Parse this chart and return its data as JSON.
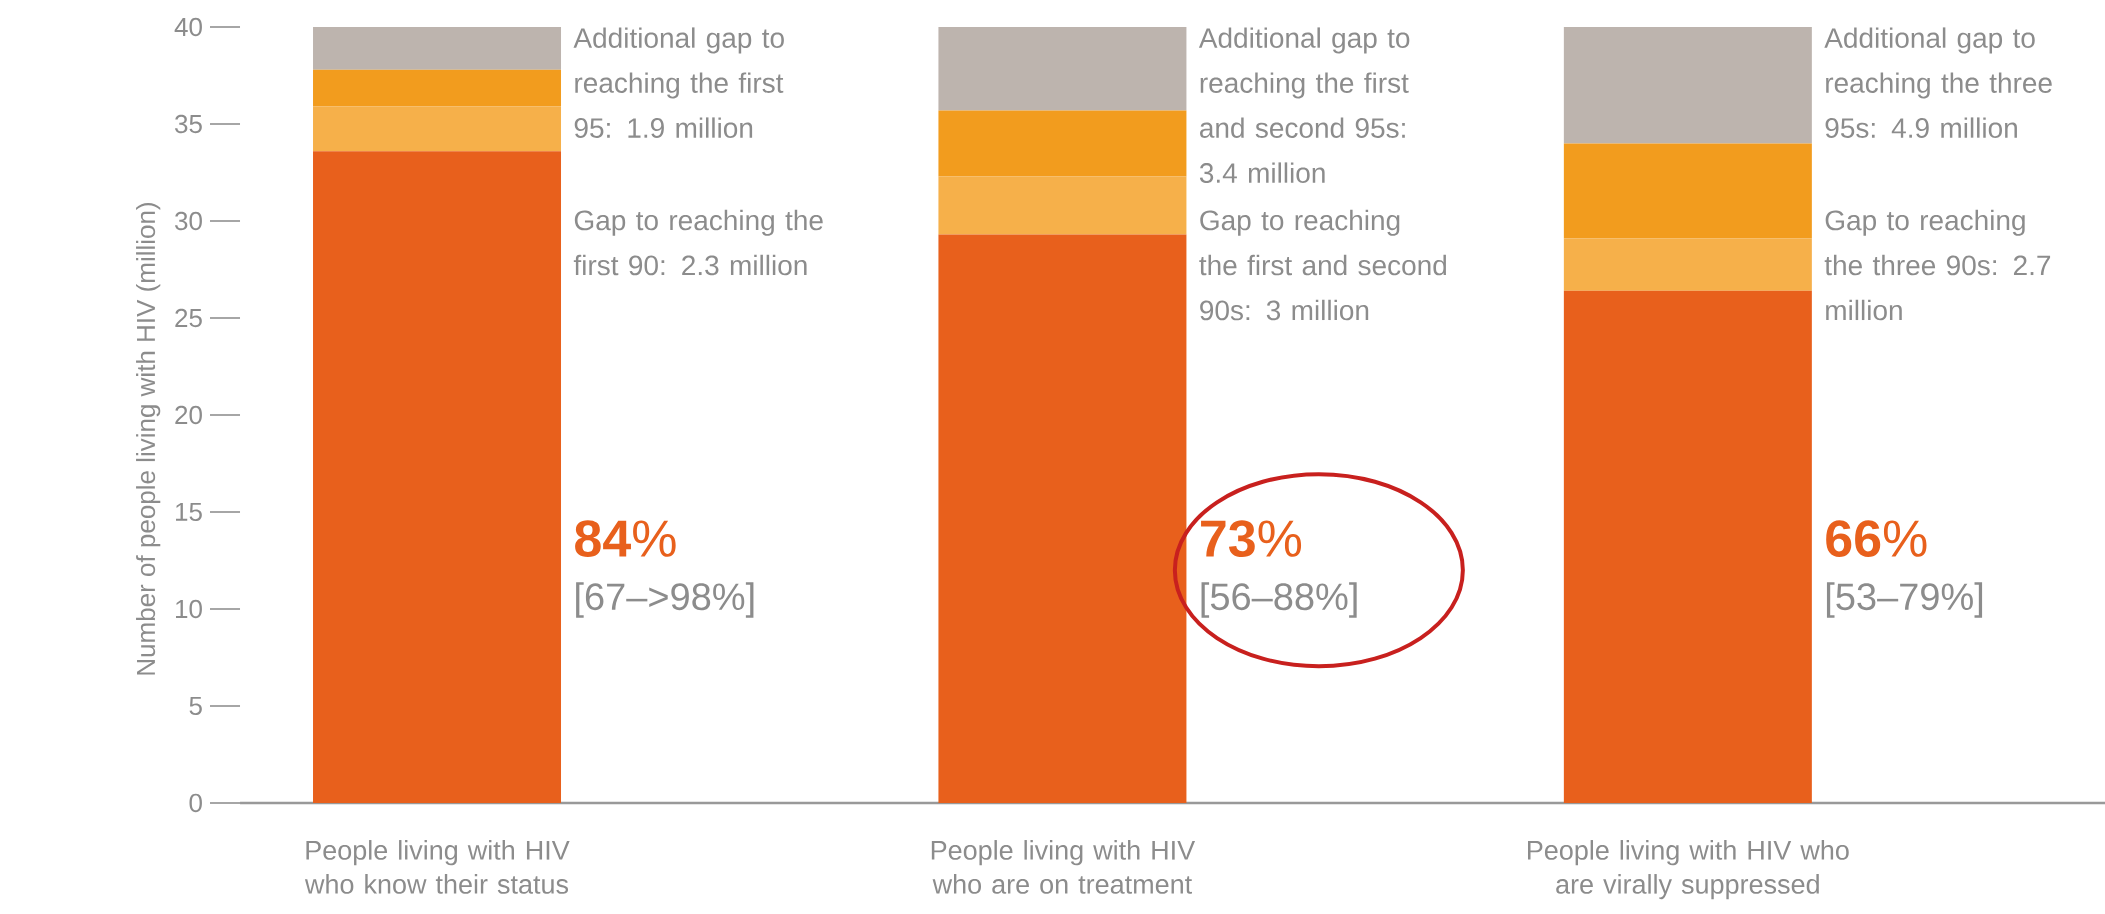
{
  "chart_data": {
    "type": "bar",
    "stacked": true,
    "ylabel": "Number of people living with HIV (million)",
    "categories": [
      "People living with HIV who know their status",
      "People living with HIV who are on treatment",
      "People living with HIV who are virally suppressed"
    ],
    "series": [
      {
        "color": "#e8601c",
        "values": [
          33.6,
          29.3,
          26.4
        ]
      },
      {
        "color": "#f6b04a",
        "values": [
          2.3,
          3.0,
          2.7
        ]
      },
      {
        "color": "#f29c1e",
        "values": [
          1.9,
          3.4,
          4.9
        ]
      },
      {
        "color": "#bdb4ae",
        "values": [
          2.2,
          4.3,
          6.0
        ]
      }
    ],
    "ylim": [
      0,
      40
    ],
    "yticks": [
      0,
      5,
      10,
      15,
      20,
      25,
      30,
      35,
      40
    ],
    "annotations": [
      "Additional gap to reaching the first 95: 1.9 million",
      "Gap to reaching the first 90: 2.3 million",
      "**84**%",
      "[67–>98%]",
      "Additional gap to reaching the first and second 95s: 3.4 million",
      "Gap to reaching the first and second 90s: 3 million",
      "**73**%",
      "[56–88%]",
      "Additional gap to reaching the three 95s: 4.9 million",
      "Gap to reaching the three 90s: 2.7 million",
      "**66**%",
      "[53–79%]"
    ]
  }
}
